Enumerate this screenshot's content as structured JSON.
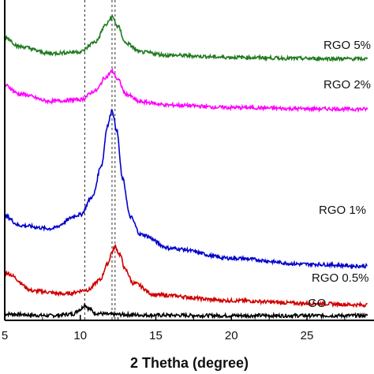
{
  "chart_data": {
    "type": "line",
    "xlabel": "2 Thetha (degree)",
    "ylabel": "",
    "xlim": [
      5,
      29
    ],
    "xticks": [
      5,
      10,
      15,
      20,
      25
    ],
    "grid": false,
    "legend": "inline labels at right end of each curve",
    "reference_lines_x": [
      10.3,
      12.1,
      12.3
    ],
    "series": [
      {
        "name": "GO",
        "color": "#000000",
        "x": [
          5,
          8,
          9.5,
          10.0,
          10.3,
          10.6,
          11.0,
          12.0,
          15,
          20,
          25,
          29
        ],
        "y": [
          0.4,
          0.0,
          0.4,
          1.6,
          2.7,
          1.7,
          0.6,
          0.3,
          0.1,
          0.0,
          0.0,
          0.0
        ]
      },
      {
        "name": "RGO 0.5%",
        "color": "#d00000",
        "x": [
          5,
          7,
          9,
          10.5,
          11.3,
          11.8,
          12.1,
          12.3,
          12.6,
          13.0,
          13.5,
          15,
          20,
          25,
          29
        ],
        "y": [
          10.8,
          6.2,
          5.5,
          6.5,
          9.0,
          13.0,
          16.0,
          17.5,
          15.5,
          11.5,
          8.2,
          5.2,
          3.8,
          3.1,
          2.7
        ]
      },
      {
        "name": "RGO 1%",
        "color": "#0000cc",
        "x": [
          5,
          6,
          8,
          10,
          10.8,
          11.4,
          11.8,
          12.1,
          12.4,
          12.8,
          13.3,
          14,
          16,
          20,
          25,
          29
        ],
        "y": [
          25.2,
          22.8,
          22.0,
          25.5,
          30.0,
          38.0,
          48.0,
          52.0,
          47.0,
          34.5,
          25.0,
          20.5,
          17.0,
          14.5,
          13.0,
          12.5
        ]
      },
      {
        "name": "RGO 2%",
        "color": "#ff00ff",
        "x": [
          5,
          6,
          8,
          10,
          11.0,
          11.7,
          12.1,
          12.5,
          13.0,
          14,
          16,
          20,
          25,
          29
        ],
        "y": [
          58.2,
          56.0,
          54.2,
          54.6,
          56.8,
          60.3,
          61.8,
          59.6,
          56.0,
          54.0,
          53.2,
          52.6,
          52.3,
          52.2
        ]
      },
      {
        "name": "RGO 5%",
        "color": "#1f7a1f",
        "x": [
          5,
          6,
          8,
          10,
          11.0,
          11.7,
          12.1,
          12.5,
          13.0,
          14,
          16,
          20,
          25,
          29
        ],
        "y": [
          70.4,
          68.0,
          66.3,
          66.7,
          69.2,
          73.5,
          75.5,
          73.0,
          68.9,
          66.6,
          65.8,
          65.3,
          65.0,
          64.9
        ]
      }
    ],
    "series_labels": [
      "GO",
      "RGO 0.5%",
      "RGO 1%",
      "RGO 2%",
      "RGO 5%"
    ]
  }
}
